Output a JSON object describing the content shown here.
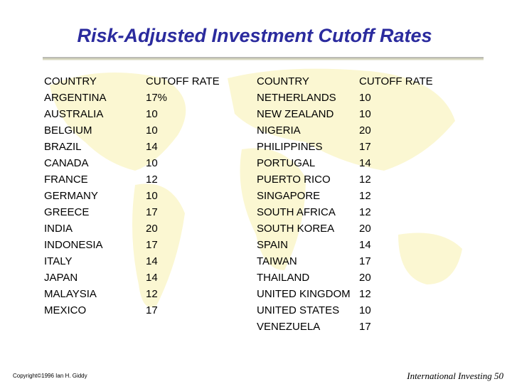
{
  "title": "Risk-Adjusted Investment Cutoff Rates",
  "tables": [
    {
      "header": [
        "COUNTRY",
        "CUTOFF RATE"
      ],
      "rows": [
        [
          "ARGENTINA",
          "17%"
        ],
        [
          "AUSTRALIA",
          10
        ],
        [
          "BELGIUM",
          10
        ],
        [
          "BRAZIL",
          14
        ],
        [
          "CANADA",
          10
        ],
        [
          "FRANCE",
          12
        ],
        [
          "GERMANY",
          10
        ],
        [
          "GREECE",
          17
        ],
        [
          "INDIA",
          20
        ],
        [
          "INDONESIA",
          17
        ],
        [
          "ITALY",
          14
        ],
        [
          "JAPAN",
          14
        ],
        [
          "MALAYSIA",
          12
        ],
        [
          "MEXICO",
          17
        ]
      ]
    },
    {
      "header": [
        "COUNTRY",
        "CUTOFF RATE"
      ],
      "rows": [
        [
          "NETHERLANDS",
          10
        ],
        [
          "NEW ZEALAND",
          10
        ],
        [
          "NIGERIA",
          20
        ],
        [
          "PHILIPPINES",
          17
        ],
        [
          "PORTUGAL",
          14
        ],
        [
          "PUERTO RICO",
          12
        ],
        [
          "SINGAPORE",
          12
        ],
        [
          "SOUTH AFRICA",
          12
        ],
        [
          "SOUTH KOREA",
          20
        ],
        [
          "SPAIN",
          14
        ],
        [
          "TAIWAN",
          17
        ],
        [
          "THAILAND",
          20
        ],
        [
          "UNITED KINGDOM",
          12
        ],
        [
          "UNITED STATES",
          10
        ],
        [
          "VENEZUELA",
          17
        ]
      ]
    }
  ],
  "footer": {
    "copyright": "Copyright©1996 Ian H. Giddy",
    "page": "International Investing 50"
  }
}
